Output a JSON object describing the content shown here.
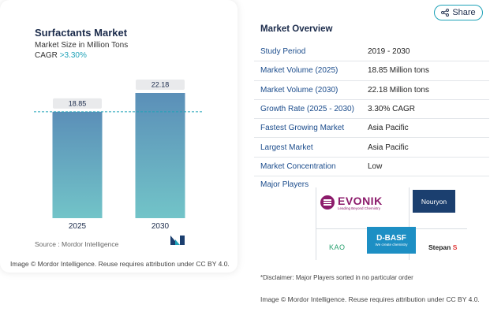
{
  "chart_data": {
    "type": "bar",
    "title": "Surfactants Market",
    "subtitle": "Market Size in Million Tons",
    "cagr_label": "CAGR",
    "cagr_value": ">3.30%",
    "categories": [
      "2025",
      "2030"
    ],
    "values": [
      18.85,
      22.18
    ],
    "value_labels": [
      "18.85",
      "22.18"
    ],
    "colors": {
      "bar_top": "#5b8fb8",
      "bar_bottom": "#72c4c8",
      "label_bg": "#e9eaec",
      "reference_line": "#1fa2b8"
    }
  },
  "source": "Source :  Mordor Intelligence",
  "card_footer": "Image © Mordor Intelligence. Reuse requires attribution under CC BY 4.0.",
  "share": {
    "label": "Share",
    "icon": "share-icon"
  },
  "overview": {
    "title": "Market Overview",
    "rows": [
      {
        "key": "Study Period",
        "value": "2019 - 2030"
      },
      {
        "key": "Market Volume (2025)",
        "value": "18.85 Million tons"
      },
      {
        "key": "Market Volume (2030)",
        "value": "22.18 Million tons"
      },
      {
        "key": "Growth Rate (2025 - 2030)",
        "value": "3.30% CAGR"
      },
      {
        "key": "Fastest Growing Market",
        "value": "Asia Pacific"
      },
      {
        "key": "Largest Market",
        "value": "Asia Pacific"
      },
      {
        "key": "Market Concentration",
        "value": "Low"
      }
    ]
  },
  "players": {
    "title": "Major Players",
    "logos": {
      "evonik": "EVONIK",
      "evonik_tagline": "Leading Beyond Chemistry",
      "nouryon": "Nouryon",
      "kao": "KAO",
      "basf": "D-BASF",
      "basf_tagline": "We create chemistry",
      "stepan": "Stepan",
      "stepan_mark": "S"
    }
  },
  "disclaimer": "*Disclaimer: Major Players sorted in no particular order",
  "footer": "Image © Mordor Intelligence. Reuse requires attribution under CC BY 4.0."
}
